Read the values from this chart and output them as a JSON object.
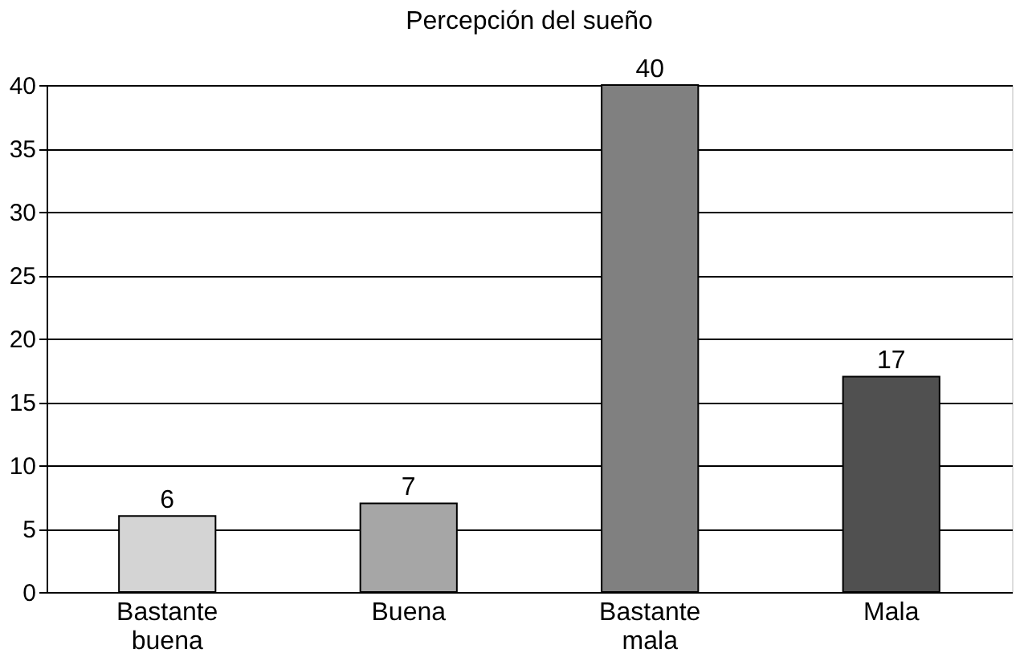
{
  "chart_data": {
    "type": "bar",
    "title": "Percepción del sueño",
    "categories": [
      "Bastante buena",
      "Buena",
      "Bastante mala",
      "Mala"
    ],
    "values": [
      6,
      7,
      40,
      17
    ],
    "colors": [
      "#d4d4d4",
      "#a6a6a6",
      "#808080",
      "#505050"
    ],
    "ylim": [
      0,
      40
    ],
    "yticks": [
      0,
      5,
      10,
      15,
      20,
      25,
      30,
      35,
      40
    ],
    "grid": "y",
    "data_labels": true
  }
}
